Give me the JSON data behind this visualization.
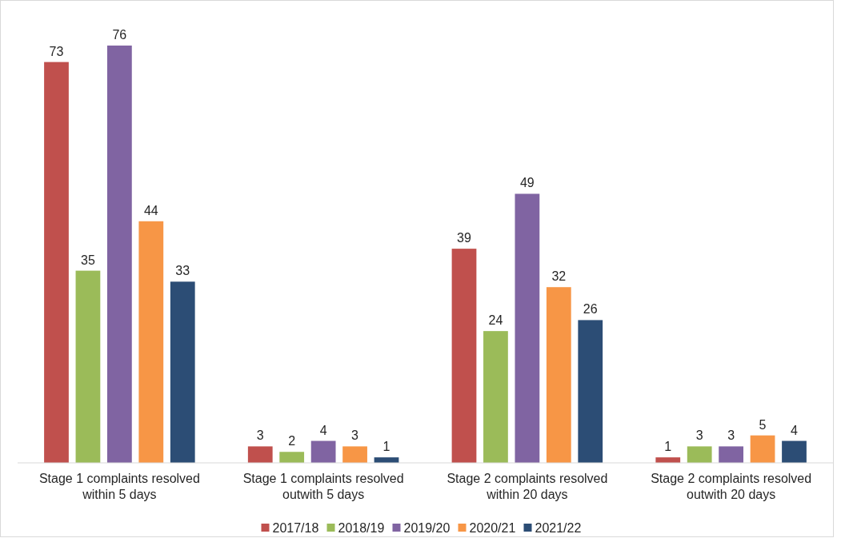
{
  "chart_data": {
    "type": "bar",
    "categories": [
      "Stage 1 complaints resolved within 5 days",
      "Stage 1 complaints resolved outwith 5 days",
      "Stage 2 complaints resolved within 20 days",
      "Stage 2 complaints resolved outwith 20 days"
    ],
    "series": [
      {
        "name": "2017/18",
        "color": "#c0504d",
        "values": [
          73,
          3,
          39,
          1
        ]
      },
      {
        "name": "2018/19",
        "color": "#9bbb59",
        "values": [
          35,
          2,
          24,
          3
        ]
      },
      {
        "name": "2019/20",
        "color": "#8064a2",
        "values": [
          76,
          4,
          49,
          3
        ]
      },
      {
        "name": "2020/21",
        "color": "#f79646",
        "values": [
          44,
          3,
          32,
          5
        ]
      },
      {
        "name": "2021/22",
        "color": "#2c4d75",
        "values": [
          33,
          1,
          26,
          4
        ]
      }
    ],
    "tick_labels": "x",
    "data_labels": true,
    "legend": "bottom"
  }
}
